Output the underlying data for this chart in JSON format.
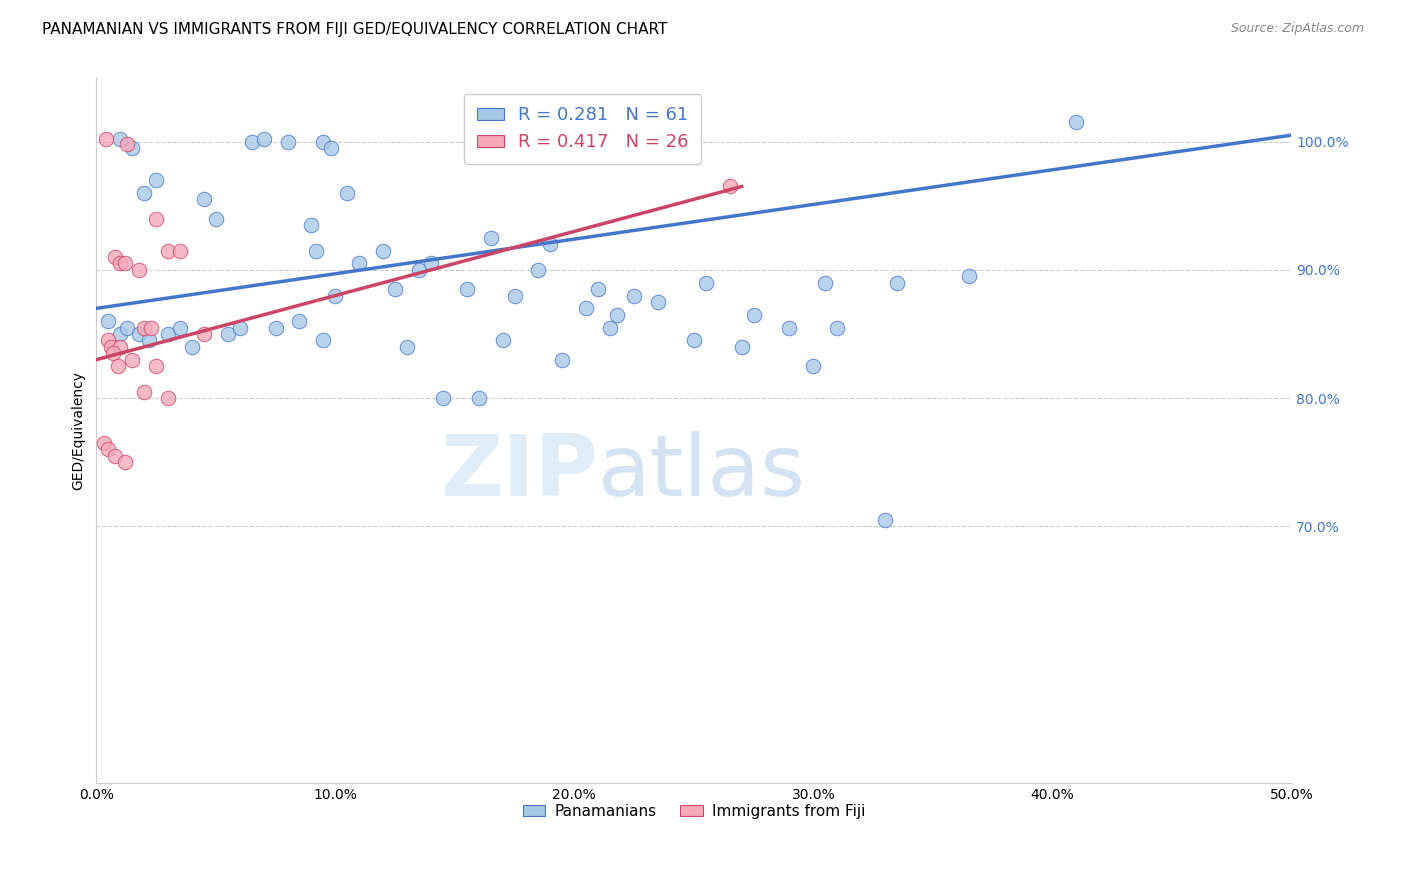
{
  "title": "PANAMANIAN VS IMMIGRANTS FROM FIJI GED/EQUIVALENCY CORRELATION CHART",
  "source": "Source: ZipAtlas.com",
  "ylabel": "GED/Equivalency",
  "xlim": [
    0.0,
    50.0
  ],
  "ylim": [
    50.0,
    105.0
  ],
  "yticks": [
    70.0,
    80.0,
    90.0,
    100.0
  ],
  "xticks": [
    0.0,
    10.0,
    20.0,
    30.0,
    40.0,
    50.0
  ],
  "legend1_r": "0.281",
  "legend1_n": "61",
  "legend2_r": "0.417",
  "legend2_n": "26",
  "blue_color": "#A8C8E8",
  "pink_color": "#F4A8B8",
  "blue_line_color": "#4477CC",
  "pink_line_color": "#CC4466",
  "watermark_zip": "ZIP",
  "watermark_atlas": "atlas",
  "blue_scatter_x": [
    1.0,
    1.5,
    6.5,
    7.0,
    8.0,
    9.5,
    9.8,
    2.5,
    2.0,
    4.5,
    5.0,
    9.0,
    10.5,
    9.2,
    11.0,
    12.0,
    13.5,
    14.0,
    16.5,
    12.5,
    15.5,
    17.5,
    19.0,
    18.5,
    20.5,
    21.0,
    22.5,
    21.8,
    23.5,
    25.5,
    27.5,
    29.0,
    30.5,
    31.0,
    33.5,
    36.5,
    0.5,
    1.0,
    1.3,
    1.8,
    2.2,
    3.0,
    3.5,
    4.0,
    5.5,
    6.0,
    7.5,
    8.5,
    9.5,
    10.0,
    13.0,
    14.5,
    16.0,
    17.0,
    19.5,
    21.5,
    25.0,
    27.0,
    30.0,
    33.0,
    41.0
  ],
  "blue_scatter_y": [
    100.2,
    99.5,
    100.0,
    100.2,
    100.0,
    100.0,
    99.5,
    97.0,
    96.0,
    95.5,
    94.0,
    93.5,
    96.0,
    91.5,
    90.5,
    91.5,
    90.0,
    90.5,
    92.5,
    88.5,
    88.5,
    88.0,
    92.0,
    90.0,
    87.0,
    88.5,
    88.0,
    86.5,
    87.5,
    89.0,
    86.5,
    85.5,
    89.0,
    85.5,
    89.0,
    89.5,
    86.0,
    85.0,
    85.5,
    85.0,
    84.5,
    85.0,
    85.5,
    84.0,
    85.0,
    85.5,
    85.5,
    86.0,
    84.5,
    88.0,
    84.0,
    80.0,
    80.0,
    84.5,
    83.0,
    85.5,
    84.5,
    84.0,
    82.5,
    70.5,
    101.5
  ],
  "pink_scatter_x": [
    0.4,
    1.3,
    2.5,
    3.0,
    3.5,
    0.8,
    1.0,
    1.2,
    1.8,
    2.0,
    2.3,
    0.5,
    0.6,
    1.0,
    1.5,
    2.5,
    0.3,
    0.5,
    0.8,
    1.2,
    2.0,
    3.0,
    4.5,
    26.5,
    0.7,
    0.9
  ],
  "pink_scatter_y": [
    100.2,
    99.8,
    94.0,
    91.5,
    91.5,
    91.0,
    90.5,
    90.5,
    90.0,
    85.5,
    85.5,
    84.5,
    84.0,
    84.0,
    83.0,
    82.5,
    76.5,
    76.0,
    75.5,
    75.0,
    80.5,
    80.0,
    85.0,
    96.5,
    83.5,
    82.5
  ],
  "blue_trend_x0": 0.0,
  "blue_trend_y0": 87.0,
  "blue_trend_x1": 50.0,
  "blue_trend_y1": 100.5,
  "pink_trend_x0": 0.0,
  "pink_trend_y0": 83.0,
  "pink_trend_x1": 27.0,
  "pink_trend_y1": 96.5,
  "title_fontsize": 11,
  "axis_label_fontsize": 10,
  "tick_fontsize": 10,
  "legend_fontsize": 13
}
